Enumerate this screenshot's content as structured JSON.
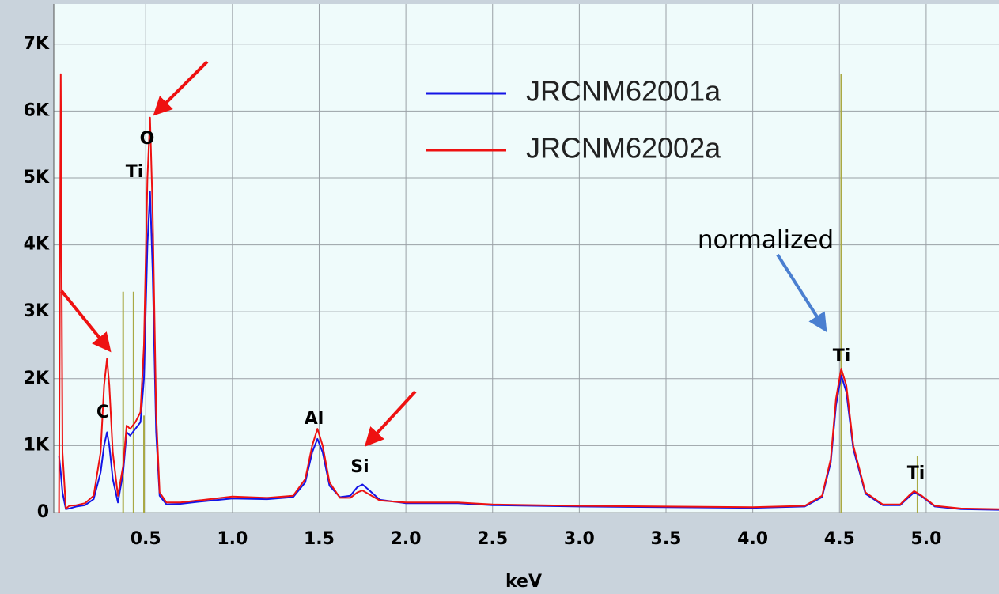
{
  "chart_data": {
    "type": "line",
    "xlabel": "keV",
    "x": [
      0,
      0.01,
      0.02,
      0.04,
      0.06,
      0.1,
      0.15,
      0.2,
      0.24,
      0.26,
      0.277,
      0.29,
      0.31,
      0.34,
      0.37,
      0.39,
      0.41,
      0.44,
      0.47,
      0.49,
      0.51,
      0.525,
      0.54,
      0.56,
      0.58,
      0.62,
      0.7,
      0.8,
      1.0,
      1.2,
      1.35,
      1.42,
      1.46,
      1.49,
      1.52,
      1.56,
      1.62,
      1.68,
      1.72,
      1.75,
      1.79,
      1.85,
      2.0,
      2.3,
      2.5,
      3.0,
      3.5,
      4.0,
      4.3,
      4.4,
      4.45,
      4.48,
      4.51,
      4.54,
      4.58,
      4.65,
      4.75,
      4.85,
      4.9,
      4.93,
      4.97,
      5.05,
      5.2,
      5.42
    ],
    "series": [
      {
        "name": "JRCNM62001a",
        "color": "#1414e6",
        "values": [
          850,
          600,
          300,
          50,
          60,
          90,
          110,
          200,
          600,
          1000,
          1200,
          1000,
          500,
          150,
          600,
          1200,
          1150,
          1250,
          1350,
          2000,
          4000,
          4800,
          3600,
          1200,
          250,
          120,
          130,
          160,
          210,
          200,
          230,
          450,
          900,
          1100,
          900,
          400,
          230,
          250,
          380,
          420,
          330,
          190,
          140,
          140,
          110,
          90,
          80,
          70,
          90,
          230,
          750,
          1600,
          2050,
          1800,
          950,
          280,
          110,
          110,
          230,
          300,
          250,
          90,
          50,
          40
        ]
      },
      {
        "name": "JRCNM62002a",
        "color": "#ee1111",
        "values": [
          0,
          6550,
          900,
          60,
          100,
          110,
          140,
          250,
          900,
          1900,
          2300,
          1900,
          900,
          250,
          700,
          1300,
          1250,
          1350,
          1500,
          2500,
          5000,
          5900,
          4500,
          1500,
          300,
          150,
          150,
          180,
          240,
          220,
          250,
          500,
          1000,
          1250,
          1000,
          450,
          220,
          220,
          300,
          330,
          270,
          180,
          150,
          150,
          120,
          100,
          90,
          80,
          100,
          250,
          800,
          1700,
          2150,
          1900,
          1000,
          300,
          120,
          120,
          250,
          320,
          260,
          100,
          60,
          50
        ]
      }
    ],
    "marker_lines": {
      "color": "#a9a944",
      "x": [
        0.37,
        0.43,
        0.49,
        4.51,
        4.95
      ],
      "heights": [
        3300,
        3300,
        1450,
        6550,
        850
      ]
    },
    "xlim": [
      -0.03,
      5.42
    ],
    "xticks": [
      {
        "value": 0.5,
        "label": "0.5"
      },
      {
        "value": 1,
        "label": "1.0"
      },
      {
        "value": 1.5,
        "label": "1.5"
      },
      {
        "value": 2,
        "label": "2.0"
      },
      {
        "value": 2.5,
        "label": "2.5"
      },
      {
        "value": 3,
        "label": "3.0"
      },
      {
        "value": 3.5,
        "label": "3.5"
      },
      {
        "value": 4,
        "label": "4.0"
      },
      {
        "value": 4.5,
        "label": "4.5"
      },
      {
        "value": 5,
        "label": "5.0"
      }
    ],
    "ylim": [
      0,
      7600
    ],
    "yticks": [
      0,
      {
        "value": 1000,
        "label": "1K"
      },
      {
        "value": 2000,
        "label": "2K"
      },
      {
        "value": 3000,
        "label": "3K"
      },
      {
        "value": 4000,
        "label": "4K"
      },
      {
        "value": 5000,
        "label": "5K"
      },
      {
        "value": 6000,
        "label": "6K"
      },
      {
        "value": 7000,
        "label": "7K"
      }
    ],
    "grid": true,
    "legend": "upper center",
    "annotations": [
      "C",
      "Ti",
      "O",
      "Al",
      "Si",
      "Ti",
      "Ti",
      "normalized"
    ]
  }
}
